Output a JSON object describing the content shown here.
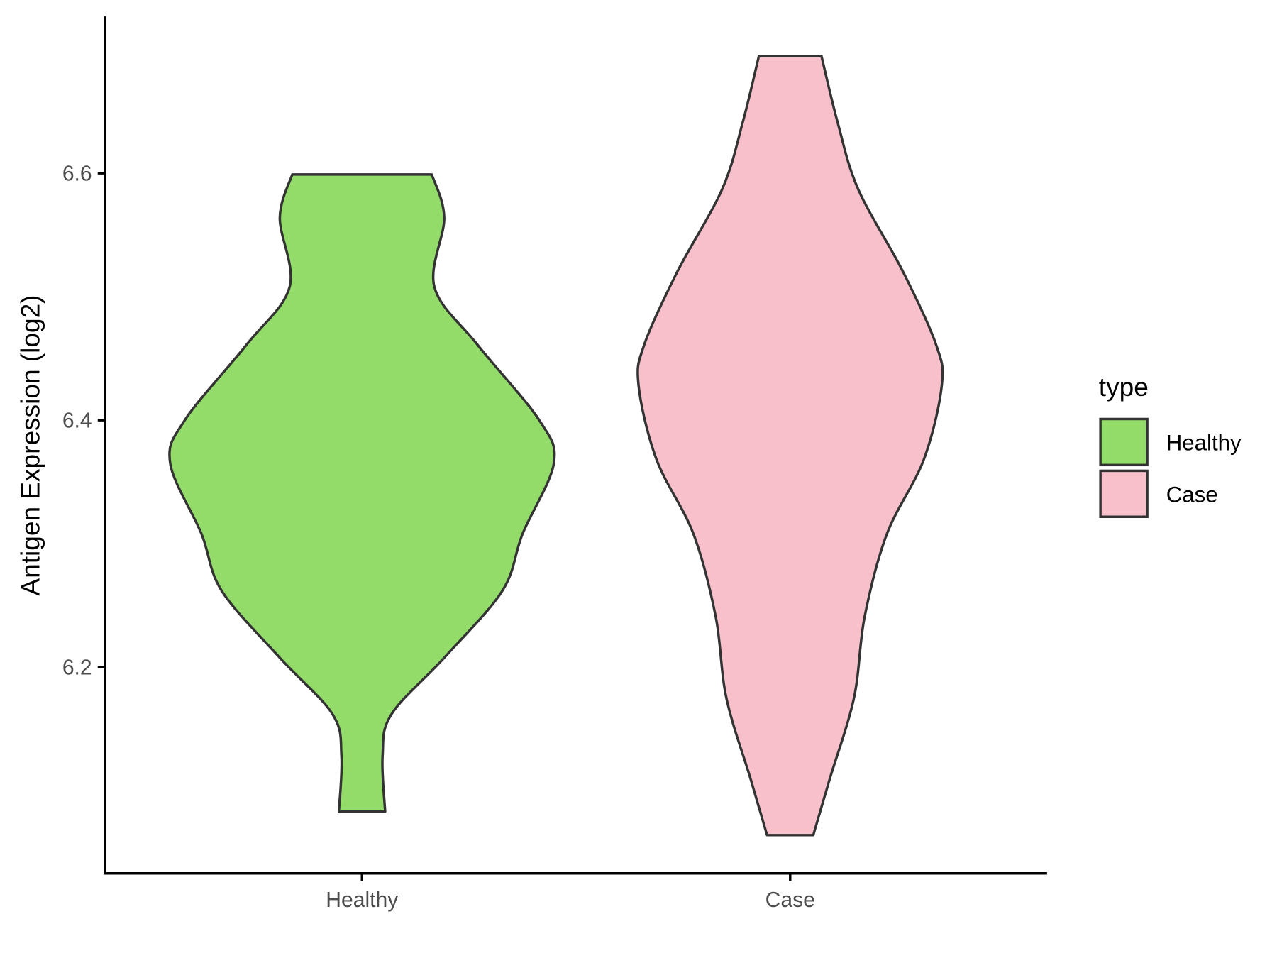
{
  "chart_data": {
    "type": "violin",
    "y_label": "Antigen Expression (log2)",
    "legend_title": "type",
    "legend_position": "right",
    "categories": [
      "Healthy",
      "Case"
    ],
    "ylim": [
      6.033,
      6.727
    ],
    "yticks": [
      {
        "value": 6.2,
        "label": "6.2"
      },
      {
        "value": 6.4,
        "label": "6.4"
      },
      {
        "value": 6.6,
        "label": "6.6"
      }
    ],
    "series": [
      {
        "name": "Healthy",
        "color": "#93dc6a",
        "y": [
          6.599,
          6.564,
          6.508,
          6.461,
          6.4,
          6.365,
          6.308,
          6.262,
          6.208,
          6.162,
          6.128,
          6.083
        ],
        "widths": [
          0.163,
          0.192,
          0.169,
          0.27,
          0.414,
          0.448,
          0.375,
          0.328,
          0.193,
          0.069,
          0.048,
          0.054
        ]
      },
      {
        "name": "Case",
        "color": "#f7c0cb",
        "y": [
          6.695,
          6.641,
          6.587,
          6.52,
          6.461,
          6.428,
          6.368,
          6.308,
          6.241,
          6.175,
          6.109,
          6.064
        ],
        "widths": [
          0.073,
          0.111,
          0.159,
          0.264,
          0.341,
          0.354,
          0.312,
          0.226,
          0.174,
          0.149,
          0.092,
          0.054
        ]
      }
    ]
  }
}
